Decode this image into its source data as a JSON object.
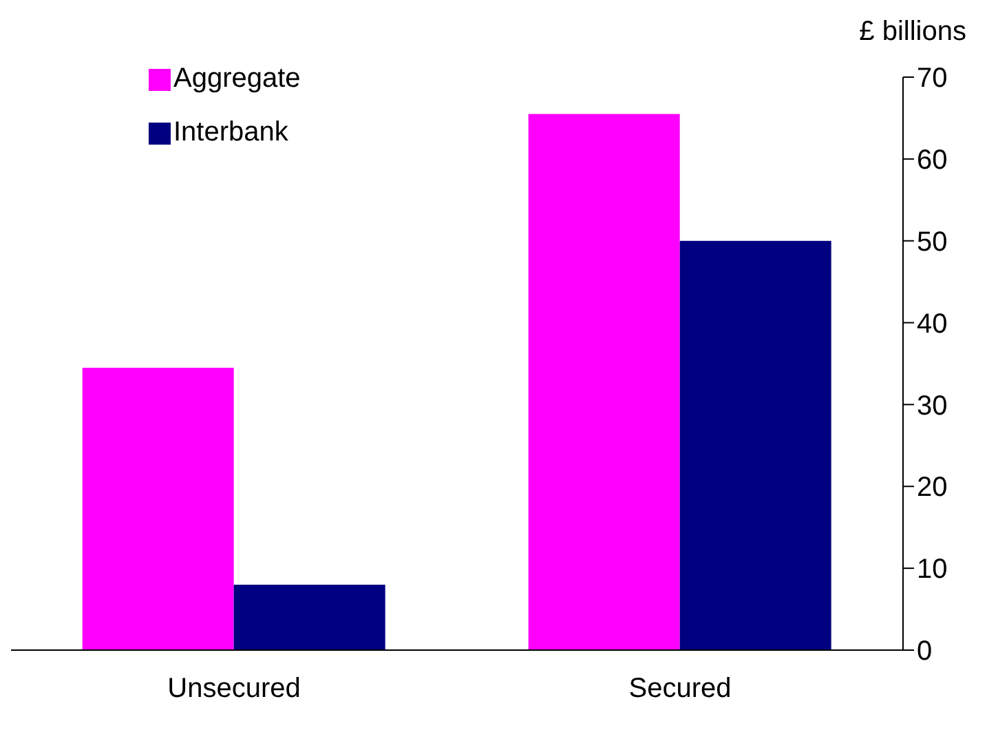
{
  "chart_data": {
    "type": "bar",
    "ylabel": "£ billions",
    "categories": [
      "Unsecured",
      "Secured"
    ],
    "series": [
      {
        "name": "Aggregate",
        "color": "#ff00ff",
        "values": [
          34.5,
          65.5
        ]
      },
      {
        "name": "Interbank",
        "color": "#000080",
        "values": [
          8,
          50
        ]
      }
    ],
    "ylim": [
      0,
      70
    ],
    "yticks": [
      0,
      10,
      20,
      30,
      40,
      50,
      60,
      70
    ],
    "grid": false,
    "legend": "top left"
  }
}
